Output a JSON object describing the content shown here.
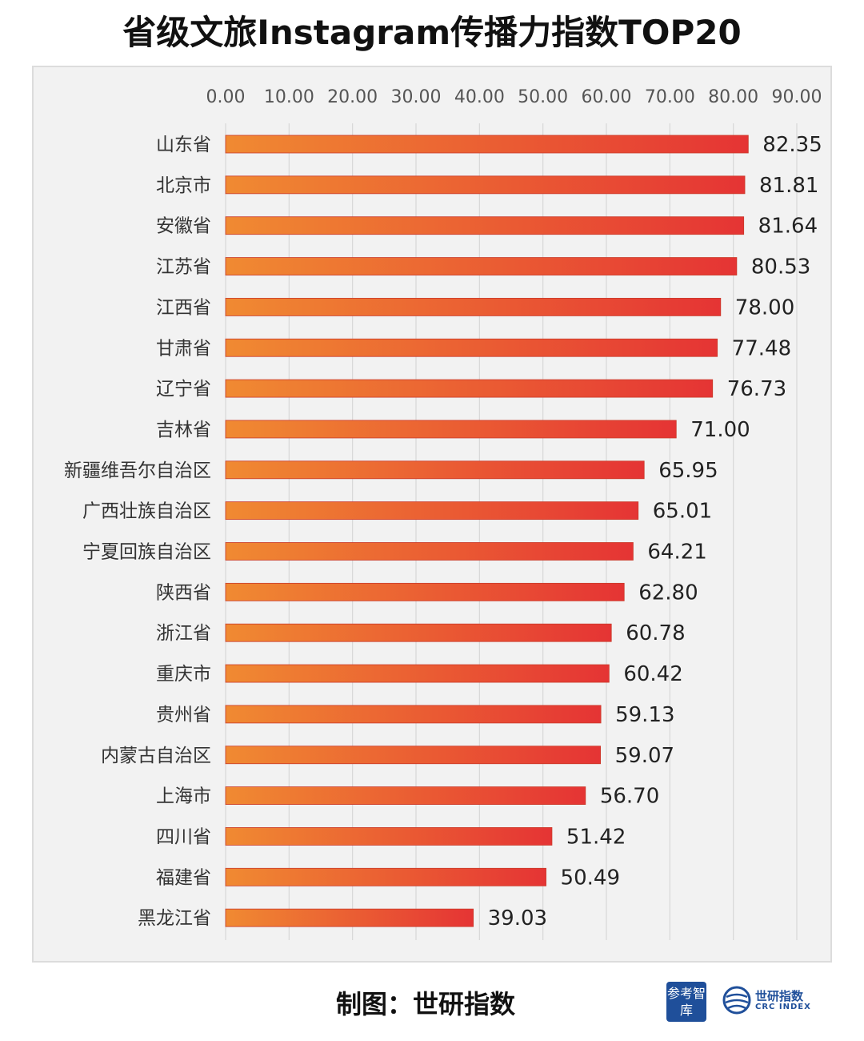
{
  "title": "省级文旅Instagram传播力指数TOP20",
  "footer": {
    "credit": "制图：世研指数",
    "logo_left": "参考智库",
    "logo_right_cn": "世研指数",
    "logo_right_en": "CRC INDEX"
  },
  "colors": {
    "bar_start": "#f08a32",
    "bar_end": "#e53434",
    "panel_bg": "#f2f2f2",
    "grid": "#d7d7d7",
    "brand_blue": "#1f4f9a"
  },
  "chart_data": {
    "type": "bar",
    "orientation": "horizontal",
    "title": "省级文旅Instagram传播力指数TOP20",
    "xlabel": "",
    "ylabel": "",
    "xlim": [
      0,
      90
    ],
    "x_ticks": [
      "0.00",
      "10.00",
      "20.00",
      "30.00",
      "40.00",
      "50.00",
      "60.00",
      "70.00",
      "80.00",
      "90.00"
    ],
    "x_axis_position": "top",
    "grid": true,
    "legend": "none",
    "categories": [
      "山东省",
      "北京市",
      "安徽省",
      "江苏省",
      "江西省",
      "甘肃省",
      "辽宁省",
      "吉林省",
      "新疆维吾尔自治区",
      "广西壮族自治区",
      "宁夏回族自治区",
      "陕西省",
      "浙江省",
      "重庆市",
      "贵州省",
      "内蒙古自治区",
      "上海市",
      "四川省",
      "福建省",
      "黑龙江省"
    ],
    "values": [
      82.35,
      81.81,
      81.64,
      80.53,
      78.0,
      77.48,
      76.73,
      71.0,
      65.95,
      65.01,
      64.21,
      62.8,
      60.78,
      60.42,
      59.13,
      59.07,
      56.7,
      51.42,
      50.49,
      39.03
    ],
    "value_labels": [
      "82.35",
      "81.81",
      "81.64",
      "80.53",
      "78.00",
      "77.48",
      "76.73",
      "71.00",
      "65.95",
      "65.01",
      "64.21",
      "62.80",
      "60.78",
      "60.42",
      "59.13",
      "59.07",
      "56.70",
      "51.42",
      "50.49",
      "39.03"
    ]
  }
}
